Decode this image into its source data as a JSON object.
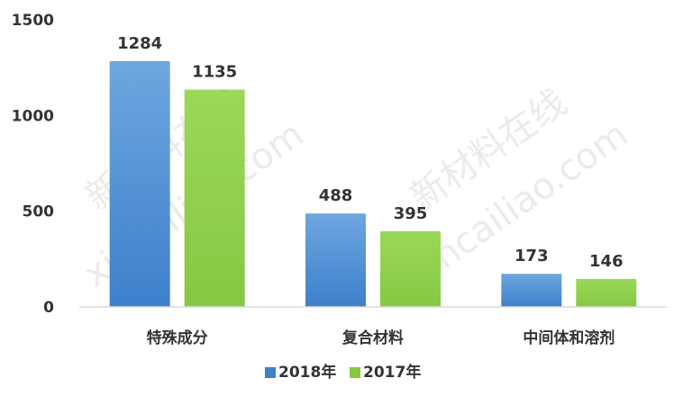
{
  "chart_data": {
    "type": "bar",
    "categories": [
      "特殊成分",
      "复合材料",
      "中间体和溶剂"
    ],
    "series": [
      {
        "name": "2018年",
        "values": [
          1284,
          488,
          173
        ],
        "color_top": "#6fa6df",
        "color_bottom": "#3d80cc"
      },
      {
        "name": "2017年",
        "values": [
          1135,
          395,
          146
        ],
        "color_top": "#9ad85a",
        "color_bottom": "#86c842"
      }
    ],
    "ylim": [
      0,
      1500
    ],
    "yticks": [
      "0",
      "500",
      "1000",
      "1500"
    ],
    "title": "",
    "xlabel": "",
    "ylabel": "",
    "grid": false,
    "legend_position": "bottom",
    "watermark": [
      "新材料在线",
      "xincailiao.com"
    ]
  }
}
